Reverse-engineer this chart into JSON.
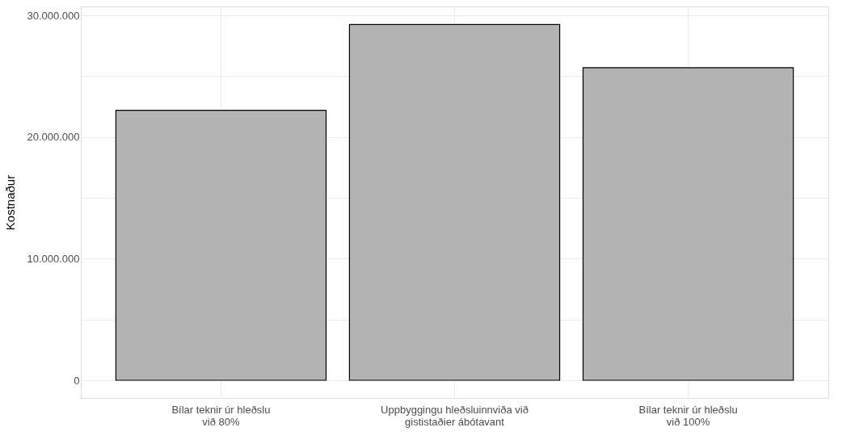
{
  "chart_data": {
    "type": "bar",
    "ylabel": "Kostnaður",
    "categories": [
      "Bílar teknir úr hleðslu\nvið 80%",
      "Uppbyggingu hleðsluinnviða við\ngististaðier ábótavant",
      "Bílar teknir úr hleðslu\nvið 100%"
    ],
    "values": [
      22200000,
      29250000,
      25700000
    ],
    "color": "#b3b3b3",
    "ylim": [
      -1460000,
      30740000
    ],
    "yticks": [
      {
        "value": 0,
        "label": "0"
      },
      {
        "value": 5000000,
        "label": null
      },
      {
        "value": 10000000,
        "label": "10.000.000"
      },
      {
        "value": 15000000,
        "label": null
      },
      {
        "value": 20000000,
        "label": "20.000.000"
      },
      {
        "value": 25000000,
        "label": null
      },
      {
        "value": 30000000,
        "label": "30.000.000"
      }
    ],
    "grid": true
  }
}
